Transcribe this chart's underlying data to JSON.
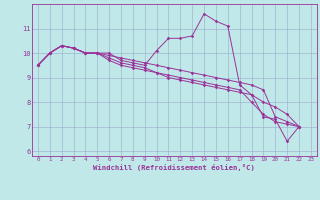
{
  "title": "",
  "xlabel": "Windchill (Refroidissement éolien,°C)",
  "ylabel": "",
  "bg_color": "#c0e8e8",
  "line_color": "#993399",
  "grid_color": "#99aacc",
  "xlim": [
    -0.5,
    23.5
  ],
  "ylim": [
    5.8,
    12.0
  ],
  "xticks": [
    0,
    1,
    2,
    3,
    4,
    5,
    6,
    7,
    8,
    9,
    10,
    11,
    12,
    13,
    14,
    15,
    16,
    17,
    18,
    19,
    20,
    21,
    22,
    23
  ],
  "yticks": [
    6,
    7,
    8,
    9,
    10,
    11
  ],
  "series": [
    [
      9.5,
      10.0,
      10.3,
      10.2,
      10.0,
      10.0,
      10.0,
      9.7,
      9.6,
      9.5,
      10.1,
      10.6,
      10.6,
      10.7,
      11.6,
      11.3,
      11.1,
      8.7,
      8.3,
      7.4,
      7.3,
      6.4,
      7.0
    ],
    [
      9.5,
      10.0,
      10.3,
      10.2,
      10.0,
      10.0,
      9.7,
      9.5,
      9.4,
      9.3,
      9.2,
      9.0,
      8.9,
      8.8,
      8.7,
      8.6,
      8.5,
      8.4,
      8.3,
      8.0,
      7.8,
      7.5,
      7.0
    ],
    [
      9.5,
      10.0,
      10.3,
      10.2,
      10.0,
      10.0,
      9.8,
      9.6,
      9.5,
      9.4,
      9.2,
      9.1,
      9.0,
      8.9,
      8.8,
      8.7,
      8.6,
      8.5,
      8.0,
      7.5,
      7.2,
      7.1,
      7.0
    ],
    [
      9.5,
      10.0,
      10.3,
      10.2,
      10.0,
      10.0,
      9.9,
      9.8,
      9.7,
      9.6,
      9.5,
      9.4,
      9.3,
      9.2,
      9.1,
      9.0,
      8.9,
      8.8,
      8.7,
      8.5,
      7.4,
      7.2,
      7.0
    ]
  ]
}
